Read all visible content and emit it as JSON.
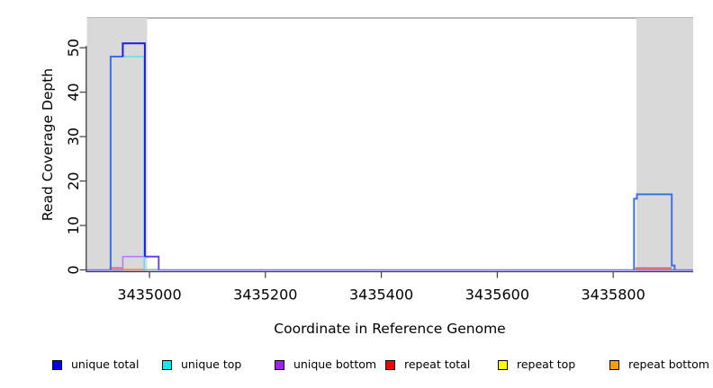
{
  "chart_data": {
    "type": "line",
    "title": "",
    "xlabel": "Coordinate in Reference Genome",
    "ylabel": "Read Coverage Depth",
    "xlim": [
      3434892,
      3435938
    ],
    "ylim": [
      0,
      56.7
    ],
    "grid": false,
    "legend_position": "bottom",
    "x_ticks": [
      {
        "pos": 3435000,
        "label": "3435000"
      },
      {
        "pos": 3435200,
        "label": "3435200"
      },
      {
        "pos": 3435400,
        "label": "3435400"
      },
      {
        "pos": 3435600,
        "label": "3435600"
      },
      {
        "pos": 3435800,
        "label": "3435800"
      }
    ],
    "y_ticks": [
      {
        "pos": 0,
        "label": "0"
      },
      {
        "pos": 10,
        "label": "10"
      },
      {
        "pos": 20,
        "label": "20"
      },
      {
        "pos": 30,
        "label": "30"
      },
      {
        "pos": 40,
        "label": "40"
      },
      {
        "pos": 50,
        "label": "50"
      }
    ],
    "highlight_regions": [
      {
        "name": "repeat-region-left",
        "x0": 3434892,
        "x1": 3434996,
        "color": "#d9d9d9"
      },
      {
        "name": "repeat-region-right",
        "x0": 3435840,
        "x1": 3435938,
        "color": "#d9d9d9"
      }
    ],
    "series": [
      {
        "name": "unique total",
        "color": "#0000ee",
        "step_points": [
          [
            3434892,
            0
          ],
          [
            3434933,
            48
          ],
          [
            3434954,
            51
          ],
          [
            3434992,
            3
          ],
          [
            3435016,
            0
          ],
          [
            3435836,
            16
          ],
          [
            3435841,
            17
          ],
          [
            3435901,
            1
          ],
          [
            3435906,
            0
          ],
          [
            3435938,
            0
          ]
        ]
      },
      {
        "name": "unique top",
        "color": "#00eeee",
        "step_points": [
          [
            3434892,
            0
          ],
          [
            3434933,
            48
          ],
          [
            3434992,
            0
          ],
          [
            3435938,
            0
          ]
        ]
      },
      {
        "name": "unique bottom",
        "color": "#a020f0",
        "step_points": [
          [
            3434892,
            0
          ],
          [
            3434954,
            3
          ],
          [
            3435016,
            0
          ],
          [
            3435938,
            0
          ]
        ]
      },
      {
        "name": "repeat total",
        "color": "#ee0000",
        "step_points": [
          [
            3434892,
            0
          ],
          [
            3435938,
            0
          ]
        ]
      },
      {
        "name": "repeat top",
        "color": "#ffff00",
        "step_points": [
          [
            3434892,
            0
          ],
          [
            3435938,
            0
          ]
        ]
      },
      {
        "name": "repeat bottom",
        "color": "#ff9e00",
        "step_points": [
          [
            3434892,
            0
          ],
          [
            3435938,
            0
          ]
        ]
      }
    ],
    "strokes": [
      {
        "name": "baseline-violet",
        "color": "#7d73f2",
        "width": 1.6,
        "points": [
          [
            3434892,
            0
          ],
          [
            3435938,
            0
          ]
        ]
      },
      {
        "name": "baseline-red-left",
        "color": "#e25672",
        "width": 1.4,
        "points": [
          [
            3434931,
            0.45
          ],
          [
            3434955,
            0.45
          ]
        ]
      },
      {
        "name": "baseline-orange",
        "color": "#ff9e2e",
        "width": 1.6,
        "points": [
          [
            3434954,
            0.12
          ],
          [
            3434993,
            0.12
          ]
        ]
      },
      {
        "name": "baseline-green",
        "color": "#a8d8a8",
        "width": 1.4,
        "points": [
          [
            3434993,
            0.12
          ],
          [
            3435017,
            0.12
          ]
        ]
      },
      {
        "name": "unique-bottom-box",
        "color": "#bb79ee",
        "width": 1.6,
        "points": [
          [
            3434954,
            0
          ],
          [
            3434954,
            3
          ],
          [
            3435016,
            3
          ]
        ]
      },
      {
        "name": "bottom-total-overlay",
        "color": "#5c3cee",
        "width": 1.8,
        "points": [
          [
            3434992,
            3
          ],
          [
            3435016,
            3
          ],
          [
            3435016,
            0
          ]
        ]
      },
      {
        "name": "unique-top-cyan",
        "color": "#55e1ef",
        "width": 1.6,
        "points": [
          [
            3434954,
            48
          ],
          [
            3434991,
            48
          ],
          [
            3434991,
            0
          ]
        ]
      },
      {
        "name": "unique-total-left",
        "color": "#3f70e7",
        "width": 2,
        "points": [
          [
            3434933,
            0
          ],
          [
            3434933,
            48
          ],
          [
            3434955,
            48
          ]
        ]
      },
      {
        "name": "unique-total-cap",
        "color": "#1c1ce8",
        "width": 2,
        "points": [
          [
            3434954,
            48
          ],
          [
            3434954,
            51
          ],
          [
            3434992,
            51
          ],
          [
            3434992,
            3
          ]
        ]
      },
      {
        "name": "baseline-red-right",
        "color": "#e84848",
        "width": 1.5,
        "points": [
          [
            3435838,
            0.4
          ],
          [
            3435901,
            0.4
          ]
        ]
      },
      {
        "name": "unique-total-right",
        "color": "#3f70e7",
        "width": 2,
        "points": [
          [
            3435836,
            0
          ],
          [
            3435836,
            16
          ],
          [
            3435841,
            16
          ],
          [
            3435841,
            17
          ],
          [
            3435901,
            17
          ],
          [
            3435901,
            1
          ],
          [
            3435906,
            1
          ],
          [
            3435906,
            0
          ]
        ]
      }
    ],
    "legend": [
      {
        "label": "unique total",
        "color": "#0000ee"
      },
      {
        "label": "unique top",
        "color": "#00eeee"
      },
      {
        "label": "unique bottom",
        "color": "#a020f0"
      },
      {
        "label": "repeat total",
        "color": "#ee0000"
      },
      {
        "label": "repeat top",
        "color": "#ffff00"
      },
      {
        "label": "repeat bottom",
        "color": "#ff9e00"
      }
    ],
    "frame": {
      "top_border_color": "#8f8f8f",
      "axis_color": "#3d3d3d",
      "text_color": "#000000"
    }
  }
}
